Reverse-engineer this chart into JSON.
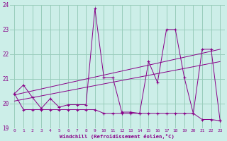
{
  "xlabel": "Windchill (Refroidissement éolien,°C)",
  "bg_color": "#cceee8",
  "line_color": "#880088",
  "grid_color": "#99ccbb",
  "xlim": [
    -0.5,
    23.5
  ],
  "ylim": [
    19,
    24
  ],
  "yticks": [
    19,
    20,
    21,
    22,
    23,
    24
  ],
  "xticks": [
    0,
    1,
    2,
    3,
    4,
    5,
    6,
    7,
    8,
    9,
    10,
    11,
    12,
    13,
    14,
    15,
    16,
    17,
    18,
    19,
    20,
    21,
    22,
    23
  ],
  "hours": [
    0,
    1,
    2,
    3,
    4,
    5,
    6,
    7,
    8,
    9,
    10,
    11,
    12,
    13,
    14,
    15,
    16,
    17,
    18,
    19,
    20,
    21,
    22,
    23
  ],
  "line_zigzag": [
    20.4,
    20.75,
    20.25,
    19.8,
    20.2,
    19.85,
    19.95,
    19.95,
    19.95,
    23.85,
    21.05,
    21.05,
    19.65,
    19.65,
    19.6,
    21.7,
    20.85,
    23.0,
    23.0,
    21.05,
    19.6,
    22.2,
    22.2,
    19.3
  ],
  "line_flat": [
    20.4,
    19.75,
    19.75,
    19.75,
    19.75,
    19.75,
    19.75,
    19.75,
    19.75,
    19.75,
    19.6,
    19.6,
    19.6,
    19.6,
    19.6,
    19.6,
    19.6,
    19.6,
    19.6,
    19.6,
    19.6,
    19.35,
    19.35,
    19.3
  ],
  "trend1_x": [
    0,
    23
  ],
  "trend1_y": [
    20.35,
    22.2
  ],
  "trend2_x": [
    0,
    23
  ],
  "trend2_y": [
    20.1,
    21.7
  ]
}
